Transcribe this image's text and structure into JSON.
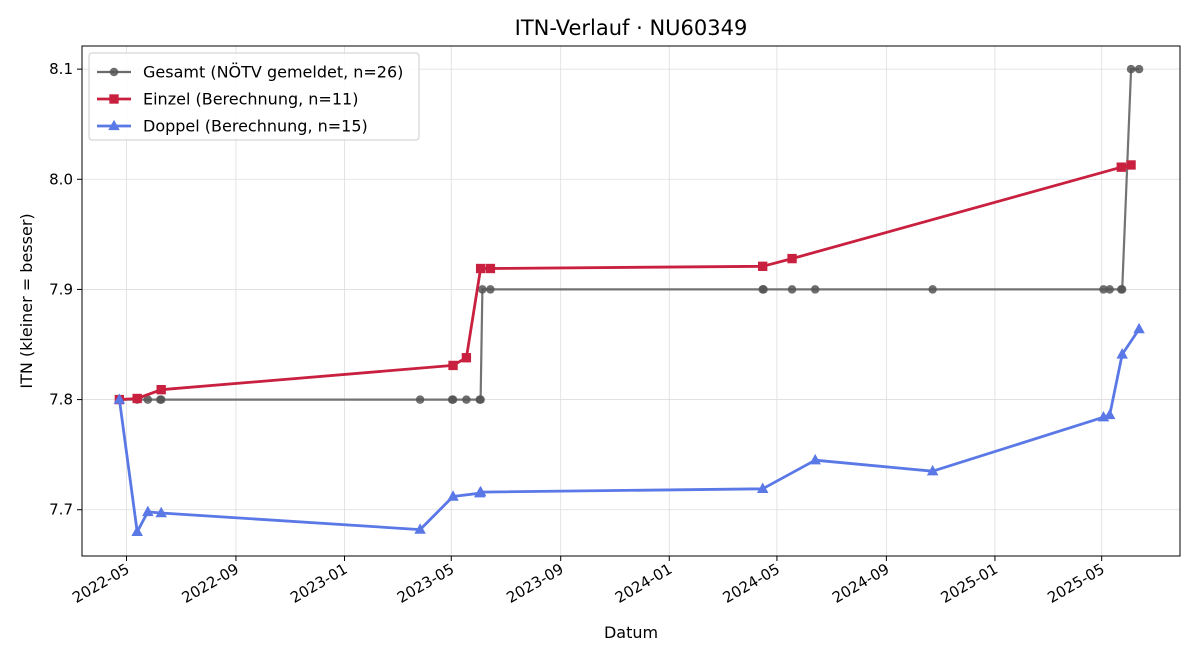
{
  "chart_data": {
    "type": "line",
    "title": "ITN-Verlauf · NU60349",
    "xlabel": "Datum",
    "ylabel": "ITN  (kleiner = besser)",
    "x_is_date": true,
    "xlim": [
      "2022-03-12",
      "2025-07-28"
    ],
    "ylim": [
      7.658,
      8.121
    ],
    "xticks": [
      "2022-05-01",
      "2022-09-01",
      "2023-01-01",
      "2023-05-01",
      "2023-09-01",
      "2024-01-01",
      "2024-05-01",
      "2024-09-01",
      "2025-01-01",
      "2025-05-01"
    ],
    "xtick_labels": [
      "2022-05",
      "2022-09",
      "2023-01",
      "2023-05",
      "2023-09",
      "2024-01",
      "2024-05",
      "2024-09",
      "2025-01",
      "2025-05"
    ],
    "yticks": [
      7.7,
      7.8,
      7.9,
      8.0,
      8.1
    ],
    "ytick_labels": [
      "7.7",
      "7.8",
      "7.9",
      "8.0",
      "8.1"
    ],
    "grid": true,
    "legend_position": "top-left",
    "series": [
      {
        "name": "Gesamt (NÖTV gemeldet, n=26)",
        "color": "#6b6b6b",
        "marker": "circle",
        "points": [
          {
            "x": "2022-04-23",
            "y": 7.8
          },
          {
            "x": "2022-05-13",
            "y": 7.8
          },
          {
            "x": "2022-05-25",
            "y": 7.8
          },
          {
            "x": "2022-06-08",
            "y": 7.8
          },
          {
            "x": "2022-06-09",
            "y": 7.8
          },
          {
            "x": "2023-03-27",
            "y": 7.8
          },
          {
            "x": "2023-05-02",
            "y": 7.8
          },
          {
            "x": "2023-05-03",
            "y": 7.8
          },
          {
            "x": "2023-05-18",
            "y": 7.8
          },
          {
            "x": "2023-06-02",
            "y": 7.8
          },
          {
            "x": "2023-06-03",
            "y": 7.8
          },
          {
            "x": "2023-06-05",
            "y": 7.9
          },
          {
            "x": "2023-06-14",
            "y": 7.9
          },
          {
            "x": "2024-04-15",
            "y": 7.9
          },
          {
            "x": "2024-04-16",
            "y": 7.9
          },
          {
            "x": "2024-05-18",
            "y": 7.9
          },
          {
            "x": "2024-06-13",
            "y": 7.9
          },
          {
            "x": "2024-10-23",
            "y": 7.9
          },
          {
            "x": "2025-05-03",
            "y": 7.9
          },
          {
            "x": "2025-05-10",
            "y": 7.9
          },
          {
            "x": "2025-05-23",
            "y": 7.9
          },
          {
            "x": "2025-05-24",
            "y": 7.9
          },
          {
            "x": "2025-06-03",
            "y": 8.1
          },
          {
            "x": "2025-06-12",
            "y": 8.1
          }
        ]
      },
      {
        "name": "Einzel (Berechnung, n=11)",
        "color": "#c8203e",
        "marker": "square",
        "points": [
          {
            "x": "2022-04-23",
            "y": 7.8
          },
          {
            "x": "2022-05-13",
            "y": 7.801
          },
          {
            "x": "2022-06-09",
            "y": 7.809
          },
          {
            "x": "2023-05-03",
            "y": 7.831
          },
          {
            "x": "2023-05-18",
            "y": 7.838
          },
          {
            "x": "2023-06-03",
            "y": 7.919
          },
          {
            "x": "2023-06-14",
            "y": 7.919
          },
          {
            "x": "2024-04-15",
            "y": 7.921
          },
          {
            "x": "2024-05-18",
            "y": 7.928
          },
          {
            "x": "2025-05-23",
            "y": 8.011
          },
          {
            "x": "2025-06-03",
            "y": 8.013
          }
        ]
      },
      {
        "name": "Doppel (Berechnung, n=15)",
        "color": "#5a78e6",
        "marker": "triangle",
        "points": [
          {
            "x": "2022-04-23",
            "y": 7.8
          },
          {
            "x": "2022-05-13",
            "y": 7.68
          },
          {
            "x": "2022-05-25",
            "y": 7.698
          },
          {
            "x": "2022-06-09",
            "y": 7.697
          },
          {
            "x": "2023-03-27",
            "y": 7.682
          },
          {
            "x": "2023-05-03",
            "y": 7.712
          },
          {
            "x": "2023-06-02",
            "y": 7.715
          },
          {
            "x": "2023-06-03",
            "y": 7.716
          },
          {
            "x": "2024-04-15",
            "y": 7.719
          },
          {
            "x": "2024-06-13",
            "y": 7.745
          },
          {
            "x": "2024-10-23",
            "y": 7.735
          },
          {
            "x": "2025-05-03",
            "y": 7.784
          },
          {
            "x": "2025-05-10",
            "y": 7.786
          },
          {
            "x": "2025-05-24",
            "y": 7.841
          },
          {
            "x": "2025-06-12",
            "y": 7.864
          }
        ]
      }
    ]
  }
}
